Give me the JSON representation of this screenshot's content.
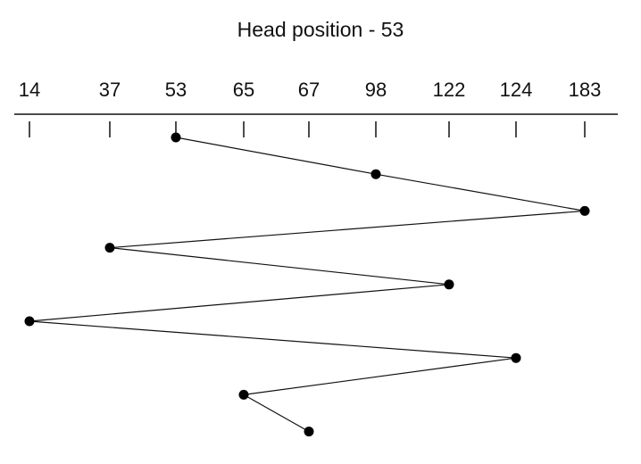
{
  "title": "Head position - 53",
  "chart_data": {
    "type": "line",
    "title": "Head position - 53",
    "axis_ticks": [
      14,
      37,
      53,
      65,
      67,
      98,
      122,
      124,
      183
    ],
    "head_start": 53,
    "sequence": [
      53,
      98,
      183,
      37,
      122,
      14,
      124,
      65,
      67
    ],
    "colors": {
      "line": "#111111",
      "point": "#000000",
      "axis": "#111111"
    }
  }
}
